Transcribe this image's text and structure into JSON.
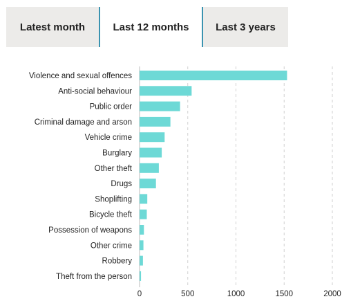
{
  "tabs": [
    {
      "label": "Latest month",
      "active": false
    },
    {
      "label": "Last 12 months",
      "active": true
    },
    {
      "label": "Last 3 years",
      "active": false
    }
  ],
  "colors": {
    "bar": "#6dd9d6",
    "tab_active_border": "#3a93b0",
    "tab_inactive_bg": "#ecebe9"
  },
  "chart_data": {
    "type": "bar",
    "orientation": "horizontal",
    "categories": [
      "Violence and sexual offences",
      "Anti-social behaviour",
      "Public order",
      "Criminal damage and arson",
      "Vehicle crime",
      "Burglary",
      "Other theft",
      "Drugs",
      "Shoplifting",
      "Bicycle theft",
      "Possession of weapons",
      "Other crime",
      "Robbery",
      "Theft from the person"
    ],
    "values": [
      1530,
      540,
      420,
      320,
      260,
      230,
      200,
      170,
      80,
      75,
      45,
      40,
      35,
      15
    ],
    "xlim": [
      0,
      2000
    ],
    "xticks": [
      0,
      500,
      1000,
      1500,
      2000
    ],
    "grid": true
  }
}
